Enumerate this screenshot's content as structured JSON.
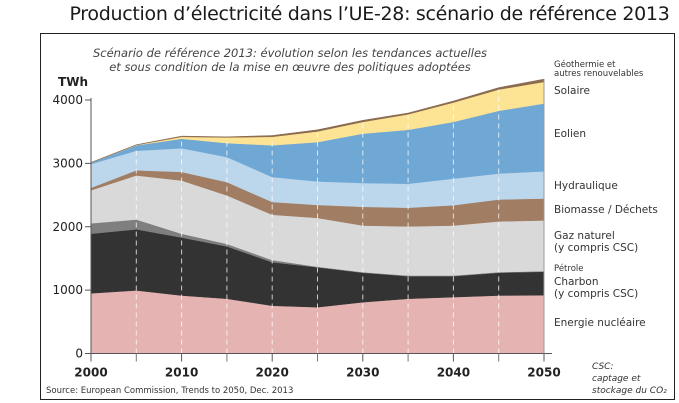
{
  "title": "Production d’électricité dans l’UE-28: scénario de référence 2013",
  "chart_data": {
    "type": "area",
    "stacked": true,
    "title": "Production d’électricité dans l’UE-28: scénario de référence 2013",
    "subtitle_lines": [
      "Scénario de référence 2013: évolution selon les tendances actuelles",
      "et sous condition de la mise en œuvre des politiques adoptées"
    ],
    "xlabel": "",
    "ylabel": "TWh",
    "x": [
      2000,
      2005,
      2010,
      2015,
      2020,
      2025,
      2030,
      2035,
      2040,
      2045,
      2050
    ],
    "xlim": [
      2000,
      2050
    ],
    "ylim": [
      0,
      4000
    ],
    "x_ticks": [
      2000,
      2010,
      2020,
      2030,
      2040,
      2050
    ],
    "x_tick_labels": [
      "2000",
      "2010",
      "2020",
      "2030",
      "2040",
      "2050"
    ],
    "x_minor_ticks": [
      2005,
      2015,
      2025,
      2035,
      2045
    ],
    "y_ticks": [
      0,
      1000,
      2000,
      3000,
      4000
    ],
    "y_tick_labels": [
      "0",
      "1000",
      "2000",
      "3000",
      "4000"
    ],
    "grid": "dashed vertical lines every 5 years",
    "legend_placement": "right",
    "series": [
      {
        "name": "Energie nucléaire",
        "color": "#e6b3b3",
        "values": [
          950,
          995,
          915,
          865,
          755,
          730,
          810,
          865,
          890,
          915,
          920
        ]
      },
      {
        "name": "Charbon (y compris CSC)",
        "color": "#333333",
        "values": [
          940,
          965,
          915,
          825,
          685,
          630,
          465,
          355,
          330,
          360,
          370
        ]
      },
      {
        "name": "Pétrole",
        "color": "#7f7f7f",
        "values": [
          165,
          155,
          60,
          40,
          35,
          10,
          10,
          10,
          10,
          10,
          10
        ]
      },
      {
        "name": "Gaz naturel (y compris CSC)",
        "color": "#d9d9d9",
        "values": [
          520,
          695,
          840,
          765,
          715,
          770,
          735,
          775,
          790,
          800,
          800
        ]
      },
      {
        "name": "Biomasse / Déchets",
        "color": "#a07d63",
        "values": [
          40,
          80,
          135,
          210,
          200,
          205,
          295,
          295,
          320,
          345,
          345
        ]
      },
      {
        "name": "Hydraulique",
        "color": "#bcd6ec",
        "values": [
          375,
          310,
          375,
          395,
          395,
          370,
          375,
          380,
          420,
          410,
          430
        ]
      },
      {
        "name": "Eolien",
        "color": "#6fa8d4",
        "values": [
          20,
          85,
          150,
          220,
          500,
          620,
          780,
          850,
          895,
          990,
          1070
        ]
      },
      {
        "name": "Solaire",
        "color": "#fde394",
        "values": [
          0,
          5,
          30,
          90,
          135,
          170,
          185,
          245,
          305,
          335,
          340
        ]
      },
      {
        "name": "Géothermie et autres renouvelables",
        "color": "#8a6a50",
        "values": [
          5,
          5,
          10,
          10,
          20,
          25,
          25,
          20,
          25,
          30,
          45
        ]
      }
    ],
    "legend_labels": [
      {
        "lines": [
          "Géothermie et",
          "autres renouvelables"
        ],
        "small": true,
        "series": "Géothermie et autres renouvelables"
      },
      {
        "lines": [
          "Solaire"
        ],
        "small": false,
        "series": "Solaire"
      },
      {
        "lines": [
          "Eolien"
        ],
        "small": false,
        "series": "Eolien"
      },
      {
        "lines": [
          "Hydraulique"
        ],
        "small": false,
        "series": "Hydraulique"
      },
      {
        "lines": [
          "Biomasse / Déchets"
        ],
        "small": false,
        "series": "Biomasse / Déchets"
      },
      {
        "lines": [
          "Gaz naturel",
          "(y compris CSC)"
        ],
        "small": false,
        "series": "Gaz naturel (y compris CSC)"
      },
      {
        "lines": [
          "Pétrole"
        ],
        "small": true,
        "series": "Pétrole"
      },
      {
        "lines": [
          "Charbon",
          "(y compris CSC)"
        ],
        "small": false,
        "series": "Charbon (y compris CSC)"
      },
      {
        "lines": [
          "Energie nucléaire"
        ],
        "small": false,
        "series": "Energie nucléaire"
      }
    ],
    "note_lines": [
      "CSC:",
      "captage et",
      "stockage du CO₂"
    ],
    "source": "Source: European Commission, Trends to 2050, Dec. 2013"
  }
}
